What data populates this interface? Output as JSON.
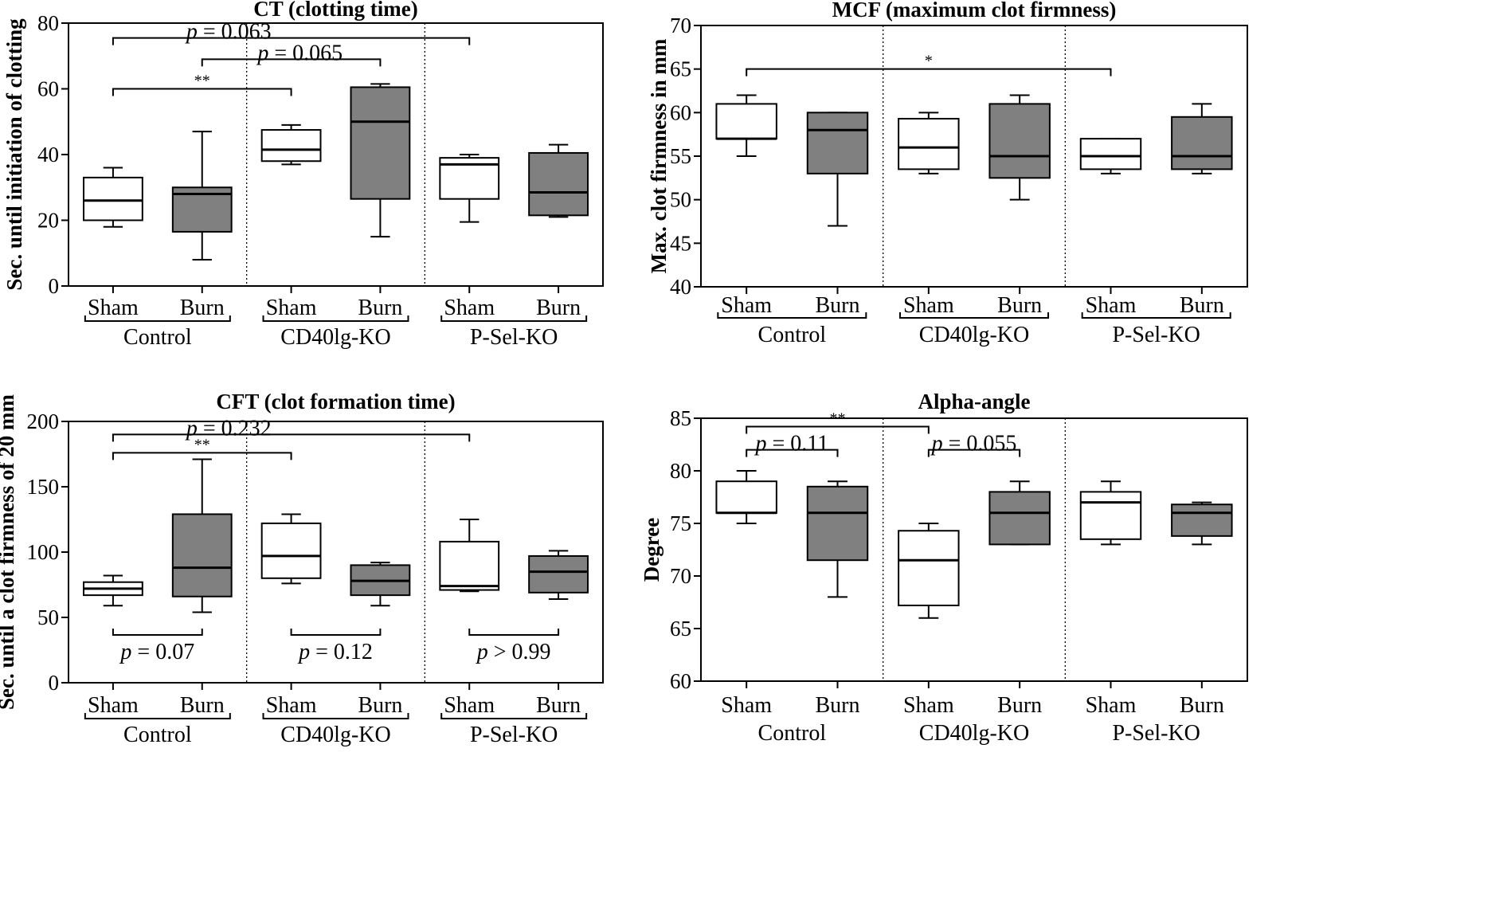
{
  "chart_data": [
    {
      "type": "box",
      "title": "CT (clotting time)",
      "ylabel": "Sec. until initiation of clotting",
      "ylim": [
        0,
        80
      ],
      "yticks": [
        0,
        20,
        40,
        60,
        80
      ],
      "boxes": [
        {
          "group": "Control",
          "category": "Sham",
          "fill": "white",
          "min": 18,
          "q1": 20,
          "median": 26,
          "q3": 33,
          "max": 36
        },
        {
          "group": "Control",
          "category": "Burn",
          "fill": "grey",
          "min": 8,
          "q1": 16.5,
          "median": 28,
          "q3": 30,
          "max": 47
        },
        {
          "group": "CD40lg-KO",
          "category": "Sham",
          "fill": "white",
          "min": 37,
          "q1": 38,
          "median": 41.5,
          "q3": 47.5,
          "max": 49
        },
        {
          "group": "CD40lg-KO",
          "category": "Burn",
          "fill": "grey",
          "min": 15,
          "q1": 26.5,
          "median": 50,
          "q3": 60.5,
          "max": 61.5
        },
        {
          "group": "P-Sel-KO",
          "category": "Sham",
          "fill": "white",
          "min": 19.5,
          "q1": 26.5,
          "median": 37,
          "q3": 39,
          "max": 40
        },
        {
          "group": "P-Sel-KO",
          "category": "Burn",
          "fill": "grey",
          "min": 21,
          "q1": 21.5,
          "median": 28.5,
          "q3": 40.5,
          "max": 43
        }
      ],
      "groups": [
        "Control",
        "CD40lg-KO",
        "P-Sel-KO"
      ],
      "group_brackets": true,
      "comparisons": [
        {
          "from": 0,
          "to": 4,
          "y": 75.5,
          "label": "p = 0.063",
          "italic_p": true,
          "label_anchor": 1.3
        },
        {
          "from": 1,
          "to": 3,
          "y": 69,
          "label": "p = 0.065",
          "italic_p": true,
          "label_anchor": 2.1
        },
        {
          "from": 0,
          "to": 2,
          "y": 60,
          "label": "**",
          "italic_p": false,
          "label_anchor": 1
        }
      ],
      "bottom_comparisons": []
    },
    {
      "type": "box",
      "title": "MCF (maximum clot firmness)",
      "ylabel": "Max. clot firmness in mm",
      "ylim": [
        40,
        70
      ],
      "yticks": [
        40,
        45,
        50,
        55,
        60,
        65,
        70
      ],
      "boxes": [
        {
          "group": "Control",
          "category": "Sham",
          "fill": "white",
          "min": 55,
          "q1": 57,
          "median": 57,
          "q3": 61,
          "max": 62
        },
        {
          "group": "Control",
          "category": "Burn",
          "fill": "grey",
          "min": 47,
          "q1": 53,
          "median": 58,
          "q3": 60,
          "max": 60
        },
        {
          "group": "CD40lg-KO",
          "category": "Sham",
          "fill": "white",
          "min": 53,
          "q1": 53.5,
          "median": 56,
          "q3": 59.3,
          "max": 60
        },
        {
          "group": "CD40lg-KO",
          "category": "Burn",
          "fill": "grey",
          "min": 50,
          "q1": 52.5,
          "median": 55,
          "q3": 61,
          "max": 62
        },
        {
          "group": "P-Sel-KO",
          "category": "Sham",
          "fill": "white",
          "min": 53,
          "q1": 53.5,
          "median": 55,
          "q3": 57,
          "max": 57
        },
        {
          "group": "P-Sel-KO",
          "category": "Burn",
          "fill": "grey",
          "min": 53,
          "q1": 53.5,
          "median": 55,
          "q3": 59.5,
          "max": 61
        }
      ],
      "groups": [
        "Control",
        "CD40lg-KO",
        "P-Sel-KO"
      ],
      "group_brackets": true,
      "comparisons": [
        {
          "from": 0,
          "to": 4,
          "y": 65,
          "label": "*",
          "italic_p": false,
          "label_anchor": 2
        }
      ],
      "bottom_comparisons": []
    },
    {
      "type": "box",
      "title": "CFT (clot formation time)",
      "ylabel": "Sec. until a clot firmness of 20 mm",
      "ylim": [
        0,
        200
      ],
      "yticks": [
        0,
        50,
        100,
        150,
        200
      ],
      "boxes": [
        {
          "group": "Control",
          "category": "Sham",
          "fill": "white",
          "min": 59,
          "q1": 67,
          "median": 72,
          "q3": 77,
          "max": 82
        },
        {
          "group": "Control",
          "category": "Burn",
          "fill": "grey",
          "min": 54,
          "q1": 66,
          "median": 88,
          "q3": 129,
          "max": 171
        },
        {
          "group": "CD40lg-KO",
          "category": "Sham",
          "fill": "white",
          "min": 76,
          "q1": 80,
          "median": 97,
          "q3": 122,
          "max": 129
        },
        {
          "group": "CD40lg-KO",
          "category": "Burn",
          "fill": "grey",
          "min": 59,
          "q1": 67,
          "median": 78,
          "q3": 90,
          "max": 92
        },
        {
          "group": "P-Sel-KO",
          "category": "Sham",
          "fill": "white",
          "min": 70,
          "q1": 71,
          "median": 74,
          "q3": 108,
          "max": 125
        },
        {
          "group": "P-Sel-KO",
          "category": "Burn",
          "fill": "grey",
          "min": 64,
          "q1": 69,
          "median": 85,
          "q3": 97,
          "max": 101
        }
      ],
      "groups": [
        "Control",
        "CD40lg-KO",
        "P-Sel-KO"
      ],
      "group_brackets": true,
      "comparisons": [
        {
          "from": 0,
          "to": 4,
          "y": 190,
          "label": "p = 0.232",
          "italic_p": true,
          "label_anchor": 1.3
        },
        {
          "from": 0,
          "to": 2,
          "y": 176,
          "label": "**",
          "italic_p": false,
          "label_anchor": 1
        }
      ],
      "bottom_comparisons": [
        {
          "from": 0,
          "to": 1,
          "label": "p = 0.07"
        },
        {
          "from": 2,
          "to": 3,
          "label": "p = 0.12"
        },
        {
          "from": 4,
          "to": 5,
          "label": "p > 0.99"
        }
      ]
    },
    {
      "type": "box",
      "title": "Alpha-angle",
      "ylabel": "Degree",
      "ylim": [
        60,
        85
      ],
      "yticks": [
        60,
        65,
        70,
        75,
        80,
        85
      ],
      "boxes": [
        {
          "group": "Control",
          "category": "Sham",
          "fill": "white",
          "min": 75,
          "q1": 76,
          "median": 76,
          "q3": 79,
          "max": 80
        },
        {
          "group": "Control",
          "category": "Burn",
          "fill": "grey",
          "min": 68,
          "q1": 71.5,
          "median": 76,
          "q3": 78.5,
          "max": 79
        },
        {
          "group": "CD40lg-KO",
          "category": "Sham",
          "fill": "white",
          "min": 66,
          "q1": 67.2,
          "median": 71.5,
          "q3": 74.3,
          "max": 75
        },
        {
          "group": "CD40lg-KO",
          "category": "Burn",
          "fill": "grey",
          "min": 73,
          "q1": 73,
          "median": 76,
          "q3": 78,
          "max": 79
        },
        {
          "group": "P-Sel-KO",
          "category": "Sham",
          "fill": "white",
          "min": 73,
          "q1": 73.5,
          "median": 77,
          "q3": 78,
          "max": 79
        },
        {
          "group": "P-Sel-KO",
          "category": "Burn",
          "fill": "grey",
          "min": 73,
          "q1": 73.8,
          "median": 76,
          "q3": 76.8,
          "max": 77
        }
      ],
      "groups": [
        "Control",
        "CD40lg-KO",
        "P-Sel-KO"
      ],
      "group_brackets": false,
      "comparisons": [
        {
          "from": 0,
          "to": 2,
          "y": 84.2,
          "label": "**",
          "italic_p": false,
          "label_anchor": 1
        },
        {
          "from": 0,
          "to": 1,
          "y": 82,
          "label": "p = 0.11",
          "italic_p": true,
          "label_anchor": 0.5
        },
        {
          "from": 2,
          "to": 3,
          "y": 82,
          "label": "p = 0.055",
          "italic_p": true,
          "label_anchor": 2.5
        }
      ],
      "bottom_comparisons": []
    }
  ]
}
